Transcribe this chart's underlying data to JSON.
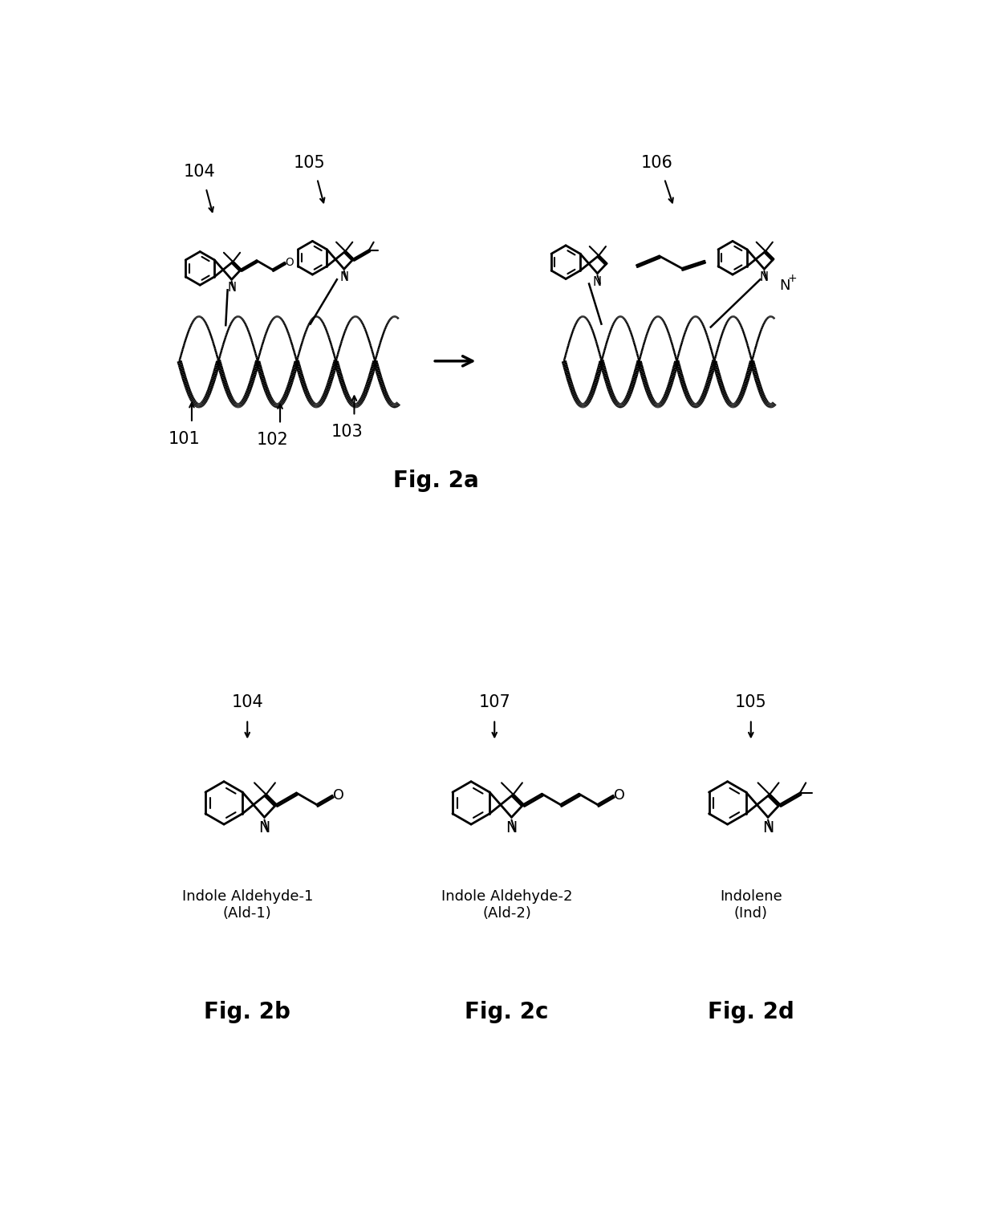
{
  "fig_width": 12.4,
  "fig_height": 15.35,
  "bg_color": "#ffffff",
  "fig2a_label": "Fig. 2a",
  "fig2b_label": "Fig. 2b",
  "fig2c_label": "Fig. 2c",
  "fig2d_label": "Fig. 2d",
  "label_104_top": "104",
  "label_105_top": "105",
  "label_106": "106",
  "label_101": "101",
  "label_102": "102",
  "label_103": "103",
  "label_104_bot": "104",
  "label_107": "107",
  "label_105_bot": "105",
  "name_ald1": "Indole Aldehyde-1\n(Ald-1)",
  "name_ald2": "Indole Aldehyde-2\n(Ald-2)",
  "name_ind": "Indolene\n(Ind)",
  "fontsize_fig": 20,
  "fontsize_label": 15,
  "fontsize_name": 13,
  "fontsize_N": 13,
  "fontsize_O": 12
}
